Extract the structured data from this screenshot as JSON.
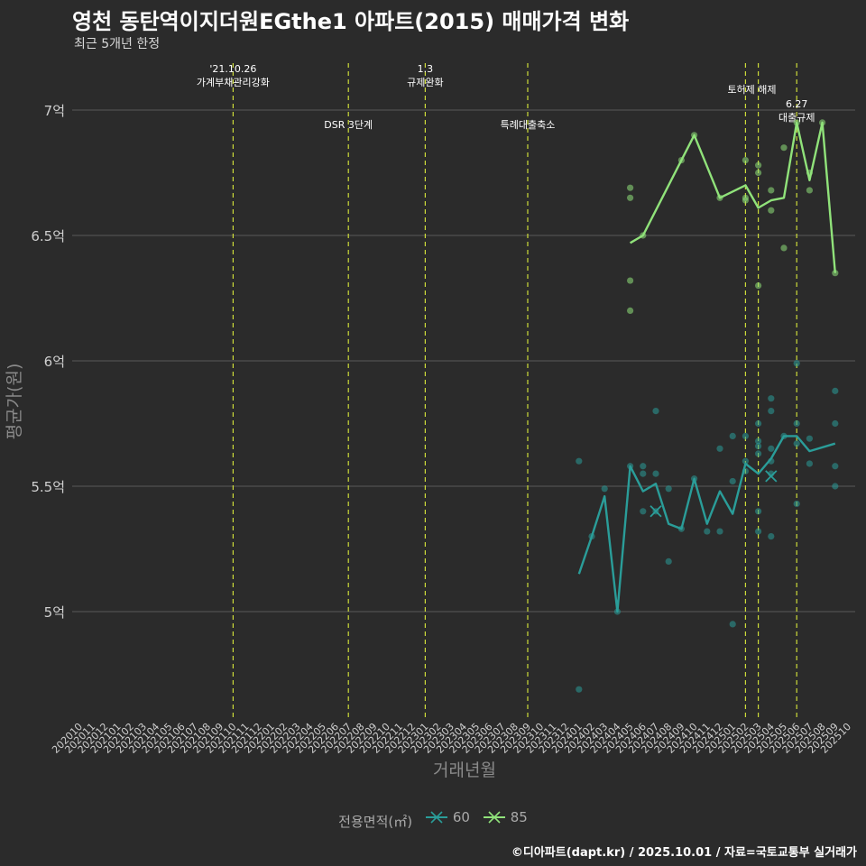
{
  "title": "영천 동탄역이지더원EGthe1 아파트(2015) 매매가격 변화",
  "subtitle": "최근 5개년 한정",
  "caption": "©디아파트(dapt.kr) / 2025.10.01 / 자료=국토교통부 실거래가",
  "colors": {
    "background": "#2b2b2b",
    "grid": "#5a5a5a",
    "vline": "#cddc39",
    "series60": "#2a9d99",
    "series85": "#90e27a"
  },
  "chart_data": {
    "type": "line",
    "xlabel": "거래년월",
    "ylabel": "평균가(원)",
    "ylim": [
      4.6,
      7.2
    ],
    "yticks": [
      {
        "value": 5.0,
        "label": "5억"
      },
      {
        "value": 5.5,
        "label": "5.5억"
      },
      {
        "value": 6.0,
        "label": "6억"
      },
      {
        "value": 6.5,
        "label": "6.5억"
      },
      {
        "value": 7.0,
        "label": "7억"
      }
    ],
    "x": [
      "202010",
      "202011",
      "202012",
      "202101",
      "202102",
      "202103",
      "202104",
      "202105",
      "202106",
      "202107",
      "202108",
      "202109",
      "202110",
      "202111",
      "202112",
      "202201",
      "202202",
      "202203",
      "202204",
      "202205",
      "202206",
      "202207",
      "202208",
      "202209",
      "202210",
      "202211",
      "202212",
      "202301",
      "202302",
      "202303",
      "202304",
      "202305",
      "202306",
      "202307",
      "202308",
      "202309",
      "202310",
      "202311",
      "202312",
      "202401",
      "202402",
      "202403",
      "202404",
      "202405",
      "202406",
      "202407",
      "202408",
      "202409",
      "202410",
      "202411",
      "202412",
      "202501",
      "202502",
      "202503",
      "202504",
      "202505",
      "202506",
      "202507",
      "202508",
      "202509",
      "202510"
    ],
    "legend": {
      "title": "전용면적(㎡)",
      "entries": [
        "60",
        "85"
      ]
    },
    "events": [
      {
        "x": "202110",
        "label": "'21.10.26\n가계부채관리강화",
        "row": "top"
      },
      {
        "x": "202207",
        "label": "DSR 3단계",
        "row": "low"
      },
      {
        "x": "202301",
        "label": "1.3\n규제완화",
        "row": "top"
      },
      {
        "x": "202309",
        "label": "특례대출축소",
        "row": "low"
      },
      {
        "x": "202502",
        "label": "토허제 해제",
        "row": "mid",
        "extra": "202503"
      },
      {
        "x": "202506",
        "label": "6.27\n대출규제",
        "row": "low2"
      }
    ],
    "series": [
      {
        "name": "60",
        "line": [
          [
            "202401",
            5.15
          ],
          [
            "202402",
            5.3
          ],
          [
            "202403",
            5.46
          ],
          [
            "202404",
            5.0
          ],
          [
            "202405",
            5.58
          ],
          [
            "202406",
            5.48
          ],
          [
            "202407",
            5.51
          ],
          [
            "202408",
            5.35
          ],
          [
            "202409",
            5.33
          ],
          [
            "202410",
            5.53
          ],
          [
            "202411",
            5.35
          ],
          [
            "202412",
            5.48
          ],
          [
            "202501",
            5.39
          ],
          [
            "202502",
            5.59
          ],
          [
            "202503",
            5.55
          ],
          [
            "202504",
            5.61
          ],
          [
            "202505",
            5.7
          ],
          [
            "202506",
            5.7
          ],
          [
            "202507",
            5.64
          ],
          [
            "202509",
            5.67
          ]
        ],
        "points": [
          [
            "202401",
            5.6
          ],
          [
            "202401",
            4.69
          ],
          [
            "202402",
            5.3
          ],
          [
            "202403",
            5.49
          ],
          [
            "202404",
            5.0
          ],
          [
            "202405",
            5.58
          ],
          [
            "202406",
            5.58
          ],
          [
            "202406",
            5.55
          ],
          [
            "202406",
            5.4
          ],
          [
            "202407",
            5.8
          ],
          [
            "202407",
            5.55
          ],
          [
            "202407",
            5.4
          ],
          [
            "202408",
            5.49
          ],
          [
            "202408",
            5.2
          ],
          [
            "202409",
            5.33
          ],
          [
            "202410",
            5.53
          ],
          [
            "202411",
            5.32
          ],
          [
            "202412",
            5.65
          ],
          [
            "202412",
            5.32
          ],
          [
            "202501",
            5.7
          ],
          [
            "202501",
            5.52
          ],
          [
            "202501",
            4.95
          ],
          [
            "202502",
            5.7
          ],
          [
            "202502",
            5.6
          ],
          [
            "202502",
            5.56
          ],
          [
            "202503",
            5.75
          ],
          [
            "202503",
            5.68
          ],
          [
            "202503",
            5.66
          ],
          [
            "202503",
            5.63
          ],
          [
            "202503",
            5.4
          ],
          [
            "202503",
            5.32
          ],
          [
            "202504",
            5.85
          ],
          [
            "202504",
            5.8
          ],
          [
            "202504",
            5.65
          ],
          [
            "202504",
            5.6
          ],
          [
            "202504",
            5.55
          ],
          [
            "202504",
            5.3
          ],
          [
            "202505",
            5.7
          ],
          [
            "202506",
            5.99
          ],
          [
            "202506",
            5.75
          ],
          [
            "202506",
            5.67
          ],
          [
            "202506",
            5.43
          ],
          [
            "202507",
            5.69
          ],
          [
            "202507",
            5.59
          ],
          [
            "202509",
            5.88
          ],
          [
            "202509",
            5.75
          ],
          [
            "202509",
            5.58
          ],
          [
            "202509",
            5.5
          ]
        ],
        "crosses": [
          [
            "202407",
            5.4
          ],
          [
            "202504",
            5.54
          ]
        ]
      },
      {
        "name": "85",
        "line": [
          [
            "202405",
            6.47
          ],
          [
            "202406",
            6.5
          ],
          [
            "202409",
            6.8
          ],
          [
            "202410",
            6.9
          ],
          [
            "202412",
            6.65
          ],
          [
            "202502",
            6.7
          ],
          [
            "202503",
            6.61
          ],
          [
            "202504",
            6.64
          ],
          [
            "202505",
            6.65
          ],
          [
            "202506",
            6.95
          ],
          [
            "202507",
            6.72
          ],
          [
            "202508",
            6.95
          ],
          [
            "202509",
            6.35
          ]
        ],
        "points": [
          [
            "202405",
            6.69
          ],
          [
            "202405",
            6.65
          ],
          [
            "202405",
            6.32
          ],
          [
            "202405",
            6.2
          ],
          [
            "202406",
            6.5
          ],
          [
            "202409",
            6.8
          ],
          [
            "202410",
            6.9
          ],
          [
            "202412",
            6.65
          ],
          [
            "202502",
            6.8
          ],
          [
            "202502",
            6.65
          ],
          [
            "202502",
            6.64
          ],
          [
            "202503",
            6.78
          ],
          [
            "202503",
            6.75
          ],
          [
            "202503",
            6.3
          ],
          [
            "202504",
            6.68
          ],
          [
            "202504",
            6.6
          ],
          [
            "202505",
            6.85
          ],
          [
            "202505",
            6.45
          ],
          [
            "202506",
            6.95
          ],
          [
            "202507",
            6.75
          ],
          [
            "202507",
            6.68
          ],
          [
            "202508",
            6.95
          ],
          [
            "202509",
            6.35
          ]
        ],
        "crosses": []
      }
    ]
  }
}
